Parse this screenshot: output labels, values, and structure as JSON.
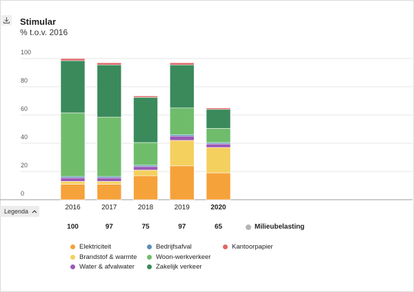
{
  "header": {
    "title": "Stimular",
    "subtitle": "% t.o.v. 2016",
    "download_icon": "download-icon"
  },
  "legend_toggle": {
    "label": "Legenda",
    "icon": "chevron-up-icon"
  },
  "environment_label": "Milieubelasting",
  "environment_color": "#b5b5b5",
  "chart_data": {
    "type": "bar",
    "stacked": true,
    "title": "Stimular",
    "subtitle": "% t.o.v. 2016",
    "categories": [
      "2016",
      "2017",
      "2018",
      "2019",
      "2020"
    ],
    "highlighted_category": "2020",
    "ylim": [
      0,
      100
    ],
    "yticks": [
      "0",
      "20",
      "40",
      "60",
      "80",
      "100"
    ],
    "grid": true,
    "totals": [
      "100",
      "97",
      "75",
      "97",
      "65"
    ],
    "series": [
      {
        "name": "Elektriciteit",
        "color": "#f6a23a",
        "values": [
          11,
          11,
          17,
          24,
          19
        ]
      },
      {
        "name": "Brandstof & warmte",
        "color": "#f4d05f",
        "values": [
          2,
          2,
          4,
          18,
          18
        ]
      },
      {
        "name": "Water & afvalwater",
        "color": "#9b59b6",
        "values": [
          2.5,
          2.5,
          2.5,
          3,
          2.5
        ]
      },
      {
        "name": "Bedrijfsafval",
        "color": "#5b8fb9",
        "values": [
          1,
          1,
          1,
          1,
          1
        ]
      },
      {
        "name": "Woon-werkverkeer",
        "color": "#6fbd6b",
        "values": [
          45,
          42,
          16,
          19,
          10
        ]
      },
      {
        "name": "Zakelijk verkeer",
        "color": "#3a8a5c",
        "values": [
          37,
          37,
          32,
          30.5,
          13.5
        ]
      },
      {
        "name": "Kantoorpapier",
        "color": "#e06666",
        "values": [
          1.5,
          1.5,
          1,
          1.5,
          1
        ]
      }
    ]
  }
}
